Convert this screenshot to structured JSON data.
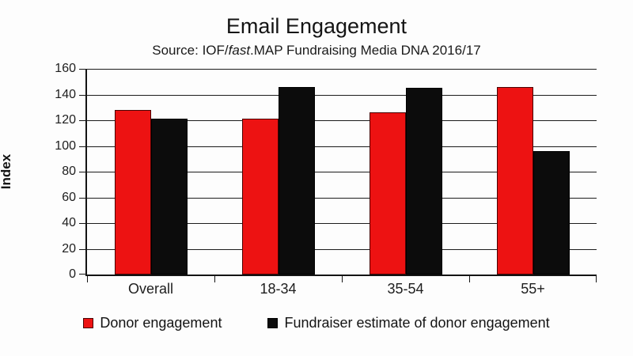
{
  "chart_data": {
    "type": "bar",
    "title": "Email Engagement",
    "subtitle_prefix": "Source: IOF/",
    "subtitle_italic": "fast",
    "subtitle_suffix": ".MAP Fundraising Media DNA 2016/17",
    "ylabel": "Index",
    "xlabel": "",
    "categories": [
      "Overall",
      "18-34",
      "35-54",
      "55+"
    ],
    "series": [
      {
        "name": "Donor engagement",
        "color": "#ed1212",
        "values": [
          128,
          121,
          126,
          146
        ]
      },
      {
        "name": "Fundraiser estimate of donor engagement",
        "color": "#0c0c0c",
        "values": [
          121,
          146,
          145,
          96
        ]
      }
    ],
    "ylim": [
      0,
      160
    ],
    "yticks": [
      0,
      20,
      40,
      60,
      80,
      100,
      120,
      140,
      160
    ],
    "grid": true,
    "legend_position": "bottom"
  }
}
